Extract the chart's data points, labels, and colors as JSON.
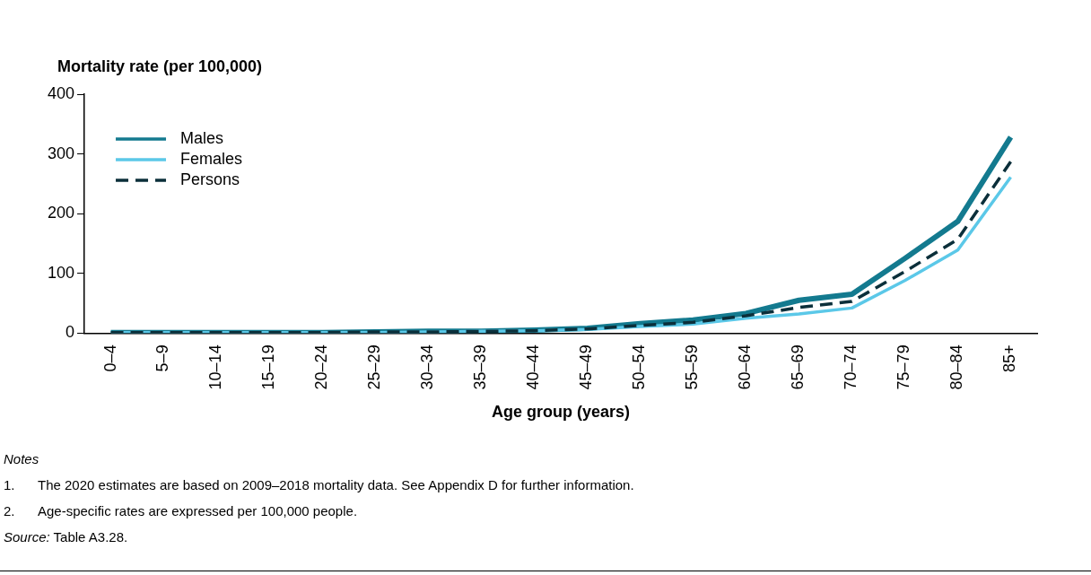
{
  "chart_data": {
    "type": "line",
    "ylabel": "Mortality rate (per 100,000)",
    "xlabel": "Age group (years)",
    "categories": [
      "0–4",
      "5–9",
      "10–14",
      "15–19",
      "20–24",
      "25–29",
      "30–34",
      "35–39",
      "40–44",
      "45–49",
      "50–54",
      "55–59",
      "60–64",
      "65–69",
      "70–74",
      "75–79",
      "80–84",
      "85+"
    ],
    "series": [
      {
        "name": "Males",
        "color": "#137a8f",
        "line_style": "solid",
        "values": [
          1,
          1,
          1,
          1,
          1,
          2,
          3,
          3,
          5,
          8,
          16,
          22,
          33,
          55,
          65,
          125,
          187,
          328
        ]
      },
      {
        "name": "Females",
        "color": "#5bc8e8",
        "line_style": "solid",
        "values": [
          1,
          1,
          1,
          1,
          1,
          1,
          2,
          3,
          4,
          6,
          11,
          15,
          25,
          32,
          42,
          88,
          139,
          261
        ]
      },
      {
        "name": "Persons",
        "color": "#0b2f3a",
        "line_style": "dashed",
        "values": [
          1,
          1,
          1,
          1,
          1,
          2,
          2,
          3,
          4,
          7,
          13,
          18,
          29,
          43,
          53,
          103,
          157,
          287
        ]
      }
    ],
    "ylim": [
      0,
      400
    ],
    "yticks": [
      0,
      100,
      200,
      300,
      400
    ],
    "grid": false,
    "legend": "top left",
    "marker": "none",
    "annotations": [
      "Notes",
      "1.\tThe 2020 estimates are based on 2009–2018 mortality data. See Appendix D for further information.",
      "2.\tAge-specific rates are expressed per 100,000 people.",
      "Source: Table A3.28."
    ]
  }
}
